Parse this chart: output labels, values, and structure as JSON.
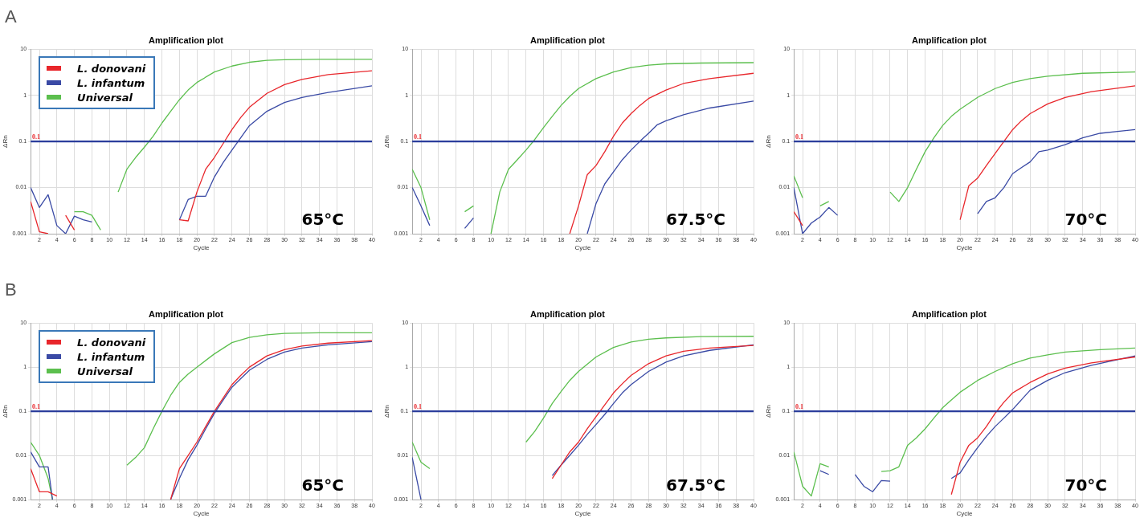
{
  "chart_data": [
    {
      "type": "line",
      "title": "Amplification plot",
      "xlabel": "Cycle",
      "ylabel": "ΔRn",
      "log": "y",
      "grid": true,
      "legend": "top left",
      "xlim": [
        1,
        40
      ],
      "xticks": [
        2,
        4,
        6,
        8,
        10,
        12,
        14,
        16,
        18,
        20,
        22,
        24,
        26,
        28,
        30,
        32,
        34,
        36,
        38,
        40
      ],
      "ylim": [
        0.001,
        10
      ],
      "yticks": [
        0.001,
        0.01,
        0.1,
        1,
        10
      ],
      "ref_lines": [
        {
          "axis": "y",
          "value": 0.1,
          "label": "0.1",
          "color": "#2b3d9c"
        }
      ],
      "annotations": [
        "65°C",
        "A"
      ],
      "series": [
        {
          "name": "L. donovani",
          "color": "#e8262b",
          "x": [
            1,
            2,
            3,
            4,
            5,
            6,
            7,
            17,
            18,
            19,
            20,
            21,
            22,
            23,
            24,
            25,
            26,
            28,
            30,
            32,
            35,
            40
          ],
          "values": [
            0.005,
            0.0011,
            0.001,
            null,
            0.0025,
            0.0012,
            null,
            null,
            0.002,
            0.0019,
            0.008,
            0.025,
            0.045,
            0.09,
            0.18,
            0.33,
            0.55,
            1.1,
            1.7,
            2.2,
            2.8,
            3.4
          ]
        },
        {
          "name": "L. infantum",
          "color": "#3a4aa5",
          "x": [
            1,
            2,
            3,
            4,
            5,
            6,
            7,
            8,
            9,
            17,
            18,
            19,
            20,
            21,
            22,
            23,
            24,
            25,
            26,
            28,
            30,
            32,
            35,
            40
          ],
          "values": [
            0.01,
            0.0037,
            0.007,
            0.0015,
            0.001,
            0.0024,
            0.002,
            0.0018,
            null,
            null,
            0.002,
            0.0055,
            0.0065,
            0.0065,
            0.017,
            0.035,
            0.065,
            0.12,
            0.22,
            0.45,
            0.7,
            0.9,
            1.15,
            1.6
          ]
        },
        {
          "name": "Universal",
          "color": "#5cbf4e",
          "x": [
            6,
            7,
            8,
            9,
            10,
            11,
            12,
            13,
            14,
            15,
            16,
            17,
            18,
            19,
            20,
            22,
            24,
            26,
            28,
            30,
            34,
            40
          ],
          "values": [
            0.003,
            0.003,
            0.0025,
            0.0012,
            null,
            0.008,
            0.025,
            0.045,
            0.075,
            0.13,
            0.25,
            0.45,
            0.8,
            1.3,
            1.9,
            3.2,
            4.3,
            5.2,
            5.7,
            5.9,
            6.0,
            6.0
          ]
        }
      ]
    },
    {
      "type": "line",
      "title": "Amplification plot",
      "xlabel": "Cycle",
      "ylabel": "ΔRn",
      "log": "y",
      "grid": true,
      "xlim": [
        1,
        40
      ],
      "xticks": [
        2,
        4,
        6,
        8,
        10,
        12,
        14,
        16,
        18,
        20,
        22,
        24,
        26,
        28,
        30,
        32,
        34,
        36,
        38,
        40
      ],
      "ylim": [
        0.001,
        10
      ],
      "yticks": [
        0.001,
        0.01,
        0.1,
        1,
        10
      ],
      "ref_lines": [
        {
          "axis": "y",
          "value": 0.1,
          "label": "0.1",
          "color": "#2b3d9c"
        }
      ],
      "annotations": [
        "67.5°C"
      ],
      "series": [
        {
          "color": "#e8262b",
          "x": [
            19,
            20,
            21,
            22,
            23,
            24,
            25,
            26,
            27,
            28,
            30,
            32,
            35,
            40
          ],
          "values": [
            0.001,
            0.004,
            0.019,
            0.03,
            0.06,
            0.13,
            0.25,
            0.4,
            0.6,
            0.85,
            1.3,
            1.8,
            2.3,
            3.0
          ]
        },
        {
          "color": "#3a4aa5",
          "x": [
            1,
            2,
            3,
            4,
            7,
            8,
            9,
            21,
            22,
            23,
            24,
            25,
            26,
            27,
            28,
            29,
            30,
            32,
            35,
            40
          ],
          "values": [
            0.01,
            0.004,
            0.0015,
            null,
            0.0013,
            0.0022,
            null,
            0.001,
            0.0045,
            0.012,
            0.022,
            0.04,
            0.065,
            0.1,
            0.15,
            0.23,
            0.28,
            0.38,
            0.53,
            0.75
          ]
        },
        {
          "color": "#5cbf4e",
          "x": [
            1,
            2,
            3,
            4,
            7,
            8,
            9,
            10,
            11,
            12,
            13,
            14,
            15,
            16,
            17,
            18,
            19,
            20,
            22,
            24,
            26,
            28,
            30,
            34,
            40
          ],
          "values": [
            0.025,
            0.01,
            0.002,
            null,
            0.003,
            0.004,
            null,
            0.001,
            0.008,
            0.025,
            0.04,
            0.065,
            0.11,
            0.2,
            0.35,
            0.6,
            0.95,
            1.4,
            2.3,
            3.2,
            4.0,
            4.5,
            4.8,
            5.0,
            5.1
          ]
        }
      ]
    },
    {
      "type": "line",
      "title": "Amplification plot",
      "xlabel": "Cycle",
      "ylabel": "ΔRn",
      "log": "y",
      "grid": true,
      "xlim": [
        1,
        40
      ],
      "xticks": [
        2,
        4,
        6,
        8,
        10,
        12,
        14,
        16,
        18,
        20,
        22,
        24,
        26,
        28,
        30,
        32,
        34,
        36,
        38,
        40
      ],
      "ylim": [
        0.001,
        10
      ],
      "yticks": [
        0.001,
        0.01,
        0.1,
        1,
        10
      ],
      "ref_lines": [
        {
          "axis": "y",
          "value": 0.1,
          "label": "0.1",
          "color": "#2b3d9c"
        }
      ],
      "annotations": [
        "70°C"
      ],
      "series": [
        {
          "color": "#e8262b",
          "x": [
            1,
            2,
            3,
            20,
            21,
            22,
            23,
            24,
            25,
            26,
            27,
            28,
            30,
            32,
            35,
            40
          ],
          "values": [
            0.003,
            0.0015,
            null,
            0.002,
            0.011,
            0.016,
            0.03,
            0.055,
            0.1,
            0.18,
            0.28,
            0.4,
            0.65,
            0.9,
            1.2,
            1.6
          ]
        },
        {
          "color": "#3a4aa5",
          "x": [
            1,
            2,
            3,
            4,
            5,
            6,
            7,
            22,
            23,
            24,
            25,
            26,
            27,
            28,
            29,
            30,
            32,
            34,
            36,
            38,
            40
          ],
          "values": [
            0.01,
            0.001,
            0.0017,
            0.0023,
            0.0037,
            0.0025,
            null,
            0.0027,
            0.005,
            0.006,
            0.01,
            0.02,
            0.027,
            0.036,
            0.06,
            0.065,
            0.085,
            0.12,
            0.15,
            0.165,
            0.18
          ]
        },
        {
          "color": "#5cbf4e",
          "x": [
            1,
            2,
            3,
            4,
            5,
            6,
            12,
            13,
            14,
            15,
            16,
            17,
            18,
            19,
            20,
            22,
            24,
            26,
            28,
            30,
            34,
            40
          ],
          "values": [
            0.018,
            0.006,
            null,
            0.004,
            0.005,
            null,
            0.008,
            0.005,
            0.01,
            0.025,
            0.06,
            0.12,
            0.22,
            0.35,
            0.5,
            0.9,
            1.4,
            1.9,
            2.3,
            2.6,
            3.0,
            3.2
          ]
        }
      ]
    },
    {
      "type": "line",
      "title": "Amplification plot",
      "xlabel": "Cycle",
      "ylabel": "ΔRn",
      "log": "y",
      "grid": true,
      "legend": "top left",
      "xlim": [
        1,
        40
      ],
      "xticks": [
        2,
        4,
        6,
        8,
        10,
        12,
        14,
        16,
        18,
        20,
        22,
        24,
        26,
        28,
        30,
        32,
        34,
        36,
        38,
        40
      ],
      "ylim": [
        0.001,
        10
      ],
      "yticks": [
        0.001,
        0.01,
        0.1,
        1,
        10
      ],
      "ref_lines": [
        {
          "axis": "y",
          "value": 0.1,
          "label": "0.1",
          "color": "#2b3d9c"
        }
      ],
      "annotations": [
        "65°C",
        "B"
      ],
      "series": [
        {
          "name": "L. donovani",
          "color": "#e8262b",
          "x": [
            1,
            2,
            3,
            4,
            5,
            17,
            18,
            19,
            20,
            21,
            22,
            23,
            24,
            25,
            26,
            28,
            30,
            32,
            35,
            40
          ],
          "values": [
            0.005,
            0.0015,
            0.0015,
            0.0012,
            null,
            0.001,
            0.005,
            0.01,
            0.02,
            0.045,
            0.1,
            0.2,
            0.4,
            0.65,
            1.0,
            1.8,
            2.5,
            3.0,
            3.5,
            4.0
          ]
        },
        {
          "name": "L. infantum",
          "color": "#3a4aa5",
          "x": [
            1,
            2,
            3,
            3.5,
            4,
            17,
            18,
            19,
            20,
            21,
            22,
            23,
            24,
            25,
            26,
            28,
            30,
            32,
            35,
            40
          ],
          "values": [
            0.012,
            0.0055,
            0.0055,
            0.001,
            null,
            0.001,
            0.003,
            0.008,
            0.017,
            0.04,
            0.09,
            0.18,
            0.35,
            0.55,
            0.85,
            1.5,
            2.2,
            2.7,
            3.2,
            3.8
          ]
        },
        {
          "name": "Universal",
          "color": "#5cbf4e",
          "x": [
            1,
            2,
            3,
            3.5,
            4,
            12,
            13,
            14,
            15,
            16,
            17,
            18,
            19,
            20,
            22,
            24,
            26,
            28,
            30,
            34,
            40
          ],
          "values": [
            0.02,
            0.01,
            0.003,
            0.001,
            null,
            0.006,
            0.009,
            0.015,
            0.04,
            0.1,
            0.23,
            0.45,
            0.7,
            1.0,
            2.0,
            3.6,
            4.7,
            5.4,
            5.8,
            6.0,
            6.0
          ]
        }
      ]
    },
    {
      "type": "line",
      "title": "Amplification plot",
      "xlabel": "Cycle",
      "ylabel": "ΔRn",
      "log": "y",
      "grid": true,
      "xlim": [
        1,
        40
      ],
      "xticks": [
        2,
        4,
        6,
        8,
        10,
        12,
        14,
        16,
        18,
        20,
        22,
        24,
        26,
        28,
        30,
        32,
        34,
        36,
        38,
        40
      ],
      "ylim": [
        0.001,
        10
      ],
      "yticks": [
        0.001,
        0.01,
        0.1,
        1,
        10
      ],
      "ref_lines": [
        {
          "axis": "y",
          "value": 0.1,
          "label": "0.1",
          "color": "#2b3d9c"
        }
      ],
      "annotations": [
        "67.5°C"
      ],
      "series": [
        {
          "color": "#e8262b",
          "x": [
            17,
            18,
            19,
            20,
            21,
            22,
            23,
            24,
            25,
            26,
            28,
            30,
            32,
            35,
            40
          ],
          "values": [
            0.003,
            0.006,
            0.012,
            0.02,
            0.04,
            0.075,
            0.14,
            0.26,
            0.42,
            0.65,
            1.2,
            1.8,
            2.3,
            2.7,
            3.1
          ]
        },
        {
          "color": "#3a4aa5",
          "x": [
            1,
            2,
            3,
            17,
            18,
            19,
            20,
            21,
            22,
            23,
            24,
            25,
            26,
            28,
            30,
            32,
            35,
            40
          ],
          "values": [
            0.009,
            0.001,
            null,
            0.0035,
            0.006,
            0.01,
            0.017,
            0.03,
            0.05,
            0.085,
            0.15,
            0.26,
            0.4,
            0.8,
            1.3,
            1.8,
            2.4,
            3.2
          ]
        },
        {
          "color": "#5cbf4e",
          "x": [
            1,
            2,
            3,
            4,
            14,
            15,
            16,
            17,
            18,
            19,
            20,
            22,
            24,
            26,
            28,
            30,
            34,
            40
          ],
          "values": [
            0.02,
            0.007,
            0.005,
            null,
            0.02,
            0.035,
            0.07,
            0.15,
            0.28,
            0.5,
            0.8,
            1.7,
            2.8,
            3.7,
            4.3,
            4.6,
            4.9,
            5.0
          ]
        }
      ]
    },
    {
      "type": "line",
      "title": "Amplification plot",
      "xlabel": "Cycle",
      "ylabel": "ΔRn",
      "log": "y",
      "grid": true,
      "xlim": [
        1,
        40
      ],
      "xticks": [
        2,
        4,
        6,
        8,
        10,
        12,
        14,
        16,
        18,
        20,
        22,
        24,
        26,
        28,
        30,
        32,
        34,
        36,
        38,
        40
      ],
      "ylim": [
        0.001,
        10
      ],
      "yticks": [
        0.001,
        0.01,
        0.1,
        1,
        10
      ],
      "ref_lines": [
        {
          "axis": "y",
          "value": 0.1,
          "label": "0.1",
          "color": "#2b3d9c"
        }
      ],
      "annotations": [
        "70°C"
      ],
      "series": [
        {
          "color": "#e8262b",
          "x": [
            19,
            20,
            21,
            22,
            23,
            24,
            25,
            26,
            28,
            30,
            32,
            35,
            40
          ],
          "values": [
            0.0013,
            0.007,
            0.017,
            0.025,
            0.045,
            0.09,
            0.16,
            0.26,
            0.45,
            0.7,
            0.95,
            1.25,
            1.7
          ]
        },
        {
          "color": "#3a4aa5",
          "x": [
            4,
            5,
            6,
            8,
            9,
            10,
            11,
            12,
            13,
            19,
            20,
            21,
            22,
            23,
            24,
            25,
            26,
            28,
            30,
            32,
            35,
            40
          ],
          "values": [
            0.0045,
            0.0037,
            null,
            0.0037,
            0.002,
            0.0015,
            0.0027,
            0.0026,
            null,
            0.003,
            0.004,
            0.008,
            0.015,
            0.027,
            0.045,
            0.07,
            0.11,
            0.3,
            0.5,
            0.75,
            1.1,
            1.8
          ]
        },
        {
          "color": "#5cbf4e",
          "x": [
            1,
            2,
            3,
            4,
            5,
            6,
            11,
            12,
            13,
            14,
            15,
            16,
            17,
            18,
            19,
            20,
            22,
            24,
            26,
            28,
            30,
            32,
            36,
            40
          ],
          "values": [
            0.012,
            0.002,
            0.0012,
            0.0065,
            0.0055,
            null,
            0.0043,
            0.0045,
            0.0055,
            0.017,
            0.025,
            0.04,
            0.07,
            0.12,
            0.18,
            0.27,
            0.5,
            0.8,
            1.2,
            1.6,
            1.9,
            2.2,
            2.5,
            2.7
          ]
        }
      ]
    }
  ]
}
